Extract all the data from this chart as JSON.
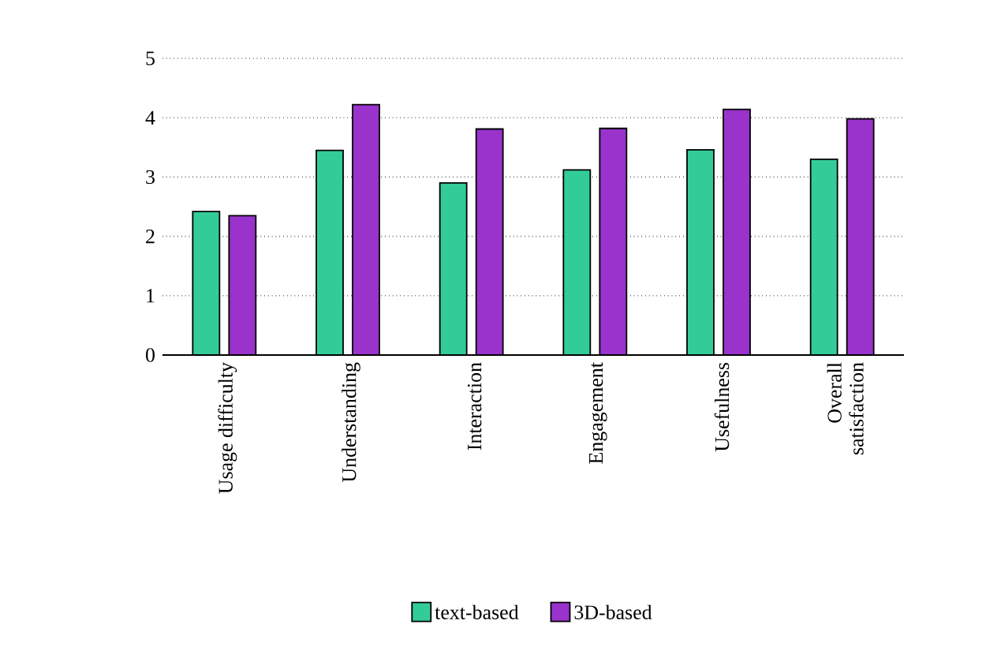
{
  "chart_data": {
    "type": "bar",
    "categories": [
      "Usage difficulty",
      "Understanding",
      "Interaction",
      "Engagement",
      "Usefulness",
      "Overall satisfaction"
    ],
    "series": [
      {
        "name": "text-based",
        "color": "#33cc99",
        "values": [
          2.42,
          3.45,
          2.9,
          3.12,
          3.46,
          3.3
        ]
      },
      {
        "name": "3D-based",
        "color": "#9933cc",
        "values": [
          2.35,
          4.22,
          3.81,
          3.82,
          4.14,
          3.98
        ]
      }
    ],
    "ylim": [
      0,
      5
    ],
    "yticks": [
      0,
      1,
      2,
      3,
      4,
      5
    ],
    "grid": "y",
    "legend": "bottom"
  }
}
